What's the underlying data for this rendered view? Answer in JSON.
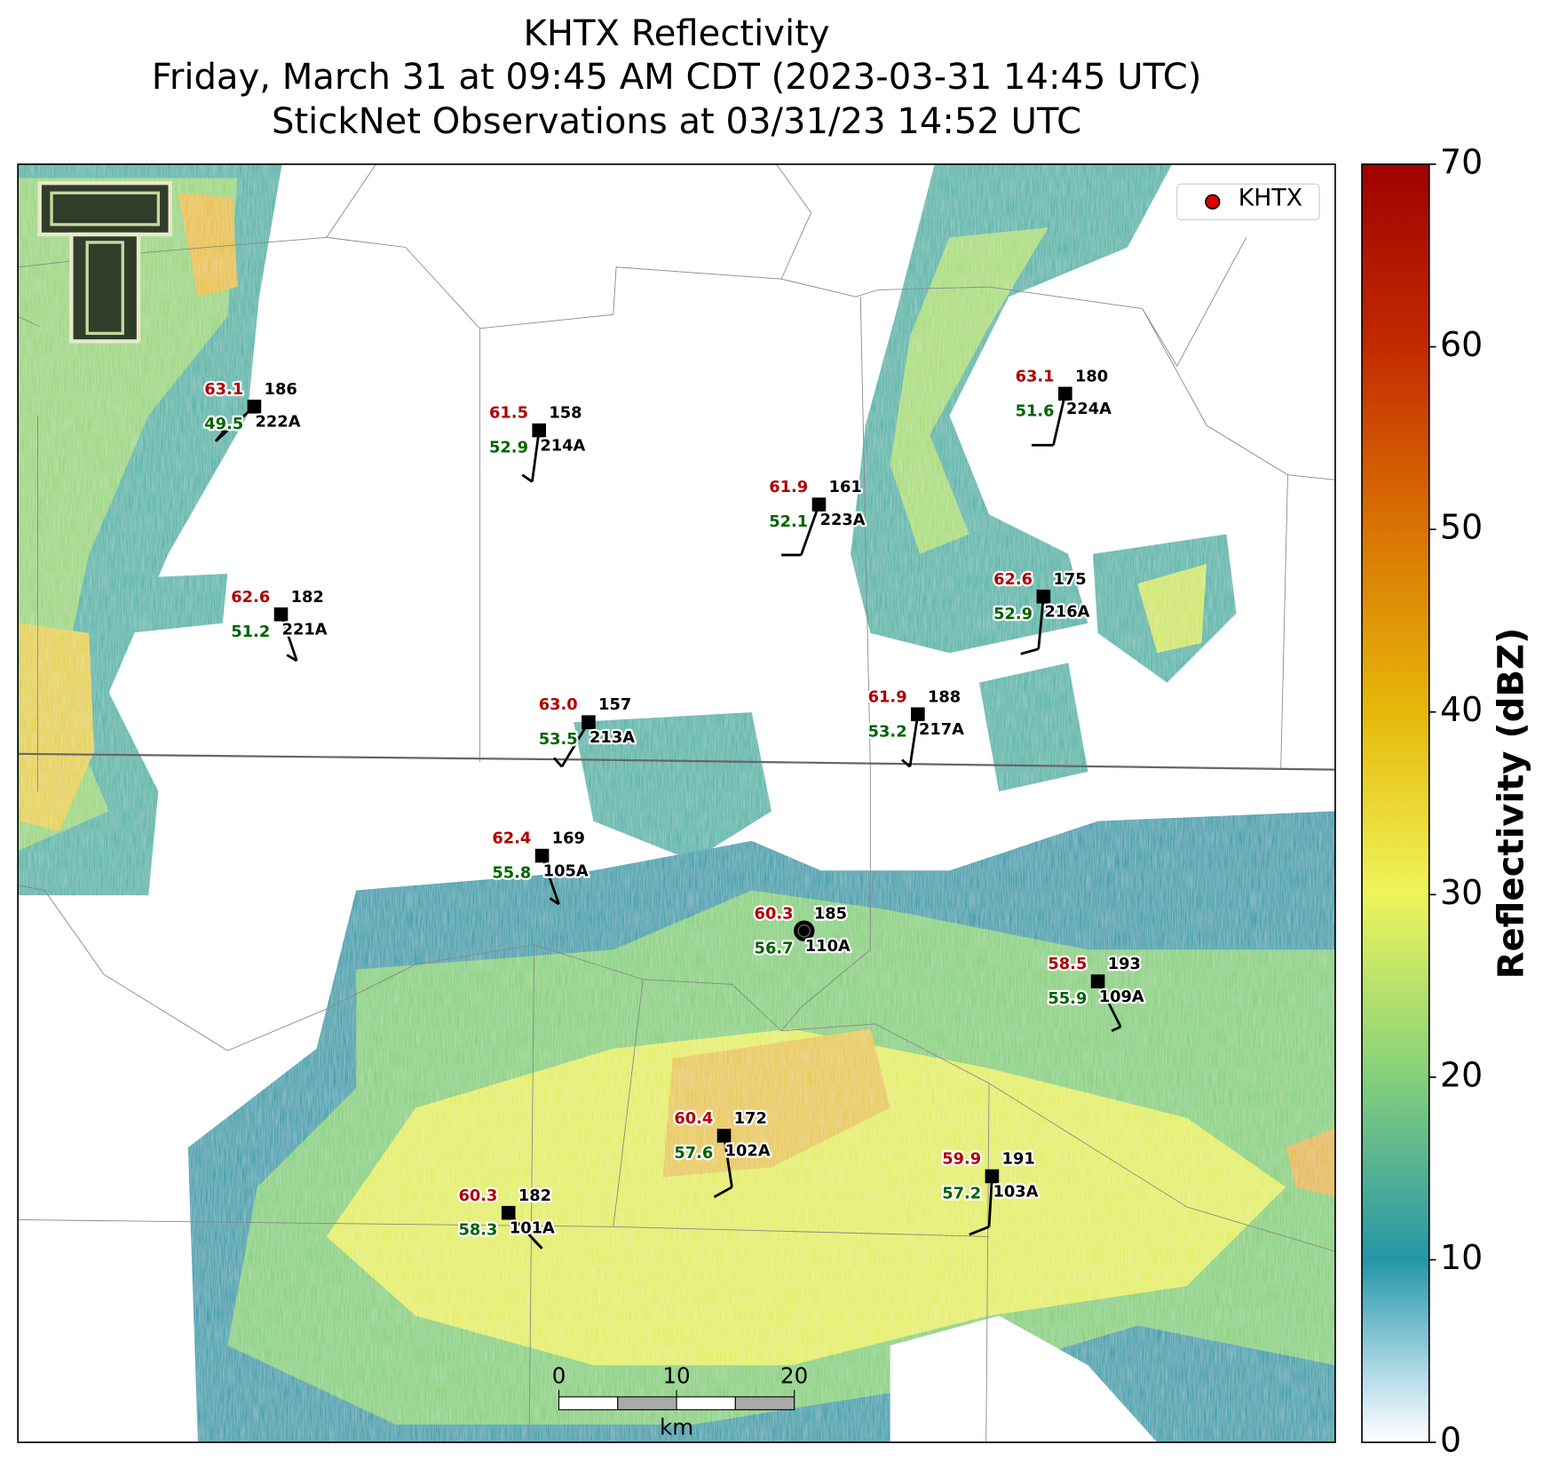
{
  "header": {
    "title": "KHTX Reflectivity",
    "subtitle": "Friday, March 31 at 09:45 AM CDT (2023-03-31 14:45 UTC)",
    "observations": "StickNet Observations at 03/31/23 14:52 UTC"
  },
  "stations": [
    {
      "id": "222A",
      "temperature": "63.1",
      "dewpoint": "49.5",
      "code": "186"
    },
    {
      "id": "214A",
      "temperature": "61.5",
      "dewpoint": "52.9",
      "code": "158"
    },
    {
      "id": "223A",
      "temperature": "61.9",
      "dewpoint": "52.1",
      "code": "161"
    },
    {
      "id": "224A",
      "temperature": "63.1",
      "dewpoint": "51.6",
      "code": "180"
    },
    {
      "id": "221A",
      "temperature": "62.6",
      "dewpoint": "51.2",
      "code": "182"
    },
    {
      "id": "216A",
      "temperature": "62.6",
      "dewpoint": "52.9",
      "code": "175"
    },
    {
      "id": "213A",
      "temperature": "63.0",
      "dewpoint": "53.5",
      "code": "157"
    },
    {
      "id": "217A",
      "temperature": "61.9",
      "dewpoint": "53.2",
      "code": "188"
    },
    {
      "id": "105A",
      "temperature": "62.4",
      "dewpoint": "55.8",
      "code": "169"
    },
    {
      "id": "110A",
      "temperature": "60.3",
      "dewpoint": "56.7",
      "code": "185"
    },
    {
      "id": "109A",
      "temperature": "58.5",
      "dewpoint": "55.9",
      "code": "193"
    },
    {
      "id": "102A",
      "temperature": "60.4",
      "dewpoint": "57.6",
      "code": "172"
    },
    {
      "id": "103A",
      "temperature": "59.9",
      "dewpoint": "57.2",
      "code": "191"
    },
    {
      "id": "101A",
      "temperature": "60.3",
      "dewpoint": "58.3",
      "code": "182"
    }
  ],
  "legend": {
    "label": "KHTX"
  },
  "colorbar": {
    "label": "Reflectivity (dBZ)",
    "lim": [
      0,
      70
    ],
    "ticks": [
      0,
      10,
      20,
      30,
      40,
      50,
      60,
      70
    ]
  },
  "scale_bar": {
    "ticks": [
      0,
      10,
      20
    ],
    "unit": "km"
  }
}
